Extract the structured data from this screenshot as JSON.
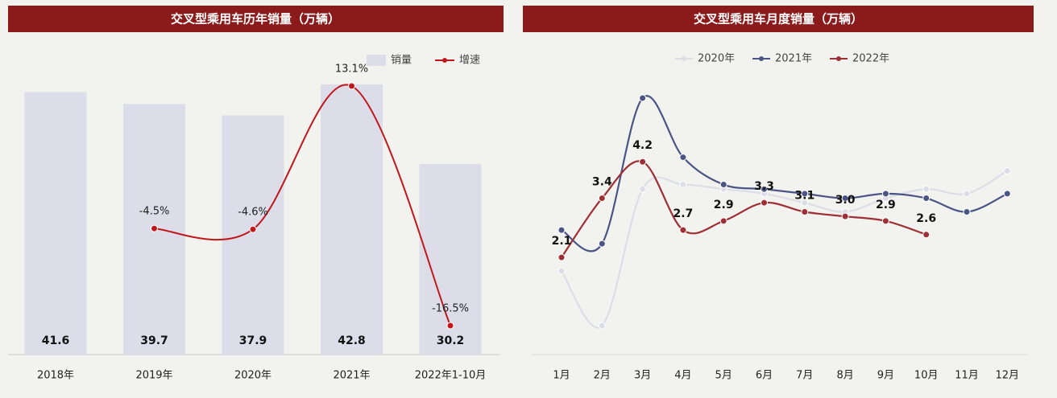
{
  "chart_data": [
    {
      "type": "bar",
      "title": "交叉型乘用车历年销量（万辆）",
      "categories": [
        "2018年",
        "2019年",
        "2020年",
        "2021年",
        "2022年1-10月"
      ],
      "legend": "top-right",
      "series": [
        {
          "name": "销量",
          "type": "bar",
          "color": "#dcdde8",
          "values": [
            41.6,
            39.7,
            37.9,
            42.8,
            30.2
          ]
        },
        {
          "name": "增速",
          "type": "line",
          "color": "#c0171c",
          "values": [
            null,
            -4.5,
            -4.6,
            13.1,
            -16.5
          ],
          "value_labels": [
            null,
            "-4.5%",
            "-4.6%",
            "13.1%",
            "-16.5%"
          ]
        }
      ]
    },
    {
      "type": "line",
      "title": "交叉型乘用车月度销量（万辆）",
      "categories": [
        "1月",
        "2月",
        "3月",
        "4月",
        "5月",
        "6月",
        "7月",
        "8月",
        "9月",
        "10月",
        "11月",
        "12月"
      ],
      "legend": "top",
      "series": [
        {
          "name": "2020年",
          "color": "#dcdde6",
          "values": [
            1.8,
            0.6,
            3.6,
            3.7,
            3.6,
            3.5,
            3.3,
            3.1,
            3.4,
            3.6,
            3.5,
            4.0
          ]
        },
        {
          "name": "2021年",
          "color": "#4a5585",
          "values": [
            2.7,
            2.4,
            5.6,
            4.3,
            3.7,
            3.6,
            3.5,
            3.4,
            3.5,
            3.4,
            3.1,
            3.5
          ]
        },
        {
          "name": "2022年",
          "color": "#9e2f35",
          "values": [
            2.1,
            3.4,
            4.2,
            2.7,
            2.9,
            3.3,
            3.1,
            3.0,
            2.9,
            2.6,
            null,
            null
          ],
          "value_labels": [
            "2.1",
            "3.4",
            "4.2",
            "2.7",
            "2.9",
            "3.3",
            "3.1",
            "3.0",
            "2.9",
            "2.6",
            null,
            null
          ]
        }
      ]
    }
  ]
}
